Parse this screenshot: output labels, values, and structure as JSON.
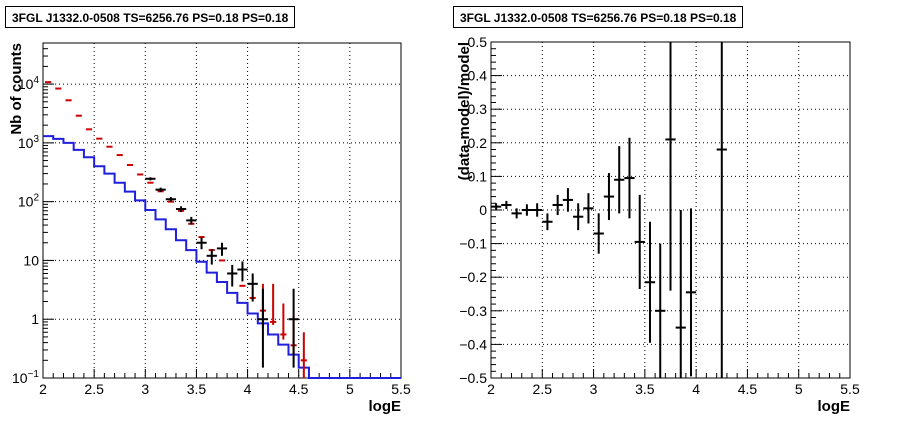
{
  "panels": [
    {
      "title": "3FGL J1332.0-0508 TS=6256.76 PS=0.18 PS=0.18"
    },
    {
      "title": "3FGL J1332.0-0508 TS=6256.76 PS=0.18 PS=0.18"
    }
  ],
  "chart_data": [
    {
      "type": "line",
      "title": "3FGL J1332.0-0508 TS=6256.76 PS=0.18 PS=0.18",
      "xlabel": "logE",
      "ylabel": "Nb of counts",
      "xlim": [
        2,
        5.5
      ],
      "ylim": [
        0.1,
        50000
      ],
      "yscale": "log",
      "grid": true,
      "x_ticks": [
        "2",
        "2.5",
        "3",
        "3.5",
        "4",
        "4.5",
        "5",
        "5.5"
      ],
      "y_ticks": [
        "10^{-1}",
        "1",
        "10",
        "10^{2}",
        "10^{3}",
        "10^{4}"
      ],
      "bin_edges": [
        2.0,
        2.1,
        2.2,
        2.3,
        2.4,
        2.5,
        2.6,
        2.7,
        2.8,
        2.9,
        3.0,
        3.1,
        3.2,
        3.3,
        3.4,
        3.5,
        3.6,
        3.7,
        3.8,
        3.9,
        4.0,
        4.1,
        4.2,
        4.3,
        4.4,
        4.5,
        4.6,
        4.7,
        4.8,
        4.9,
        5.0,
        5.1,
        5.2,
        5.3,
        5.4,
        5.5
      ],
      "series": [
        {
          "kind": "step",
          "color": "#1f1fdc",
          "values": [
            1300,
            1170,
            1000,
            760,
            570,
            400,
            300,
            210,
            148,
            105,
            72,
            50,
            34,
            22,
            15,
            9.5,
            6.2,
            4.3,
            2.8,
            1.9,
            1.25,
            0.85,
            0.55,
            0.37,
            0.25,
            0.15,
            0.1,
            0.1,
            0.1,
            0.1,
            0.1,
            0.1,
            0.1,
            0.1,
            0.1
          ]
        },
        {
          "kind": "markers",
          "color": "#cc0000",
          "values": [
            10800,
            8400,
            5300,
            2900,
            1700,
            1180,
            860,
            620,
            420,
            290,
            210,
            150,
            100,
            70,
            42,
            25,
            15,
            10,
            6,
            3.7,
            2.3,
            1.4,
            0.9,
            0.55,
            0.36,
            0.2
          ],
          "err_low": [
            0,
            0,
            0,
            0,
            0,
            0,
            0,
            0,
            0,
            0,
            0,
            0,
            0,
            0,
            0,
            0,
            0,
            0,
            0,
            0,
            0,
            0.7,
            0.1,
            0.1,
            0.1,
            0.1
          ],
          "err_high": [
            0,
            0,
            0,
            0,
            0,
            0,
            0,
            0,
            0,
            0,
            0,
            0,
            0,
            0,
            0,
            0,
            0,
            0,
            0,
            0,
            0,
            2.6,
            3.1,
            1.3,
            0.8,
            0.4
          ]
        },
        {
          "kind": "points",
          "color": "#000000",
          "x": [
            3.05,
            3.15,
            3.25,
            3.35,
            3.45,
            3.55,
            3.65,
            3.75,
            3.85,
            3.95,
            4.05,
            4.15,
            4.45
          ],
          "values": [
            245,
            160,
            110,
            75,
            48,
            20,
            12,
            16,
            6,
            7,
            4,
            1,
            1
          ],
          "err_low": [
            15,
            13,
            10,
            8.5,
            7,
            4.5,
            3.5,
            4,
            2.4,
            2.6,
            2,
            0.85,
            0.85
          ],
          "err_high": [
            15,
            13,
            10,
            8.5,
            7,
            4.5,
            3.5,
            4,
            2.4,
            2.6,
            2,
            2.3,
            2.3
          ]
        }
      ]
    },
    {
      "type": "scatter",
      "title": "3FGL J1332.0-0508 TS=6256.76 PS=0.18 PS=0.18",
      "xlabel": "logE",
      "ylabel": "(data-model)/model",
      "xlim": [
        2,
        5.5
      ],
      "ylim": [
        -0.5,
        0.5
      ],
      "grid": true,
      "x_ticks": [
        "2",
        "2.5",
        "3",
        "3.5",
        "4",
        "4.5",
        "5",
        "5.5"
      ],
      "y_ticks": [
        "-0.5",
        "-0.4",
        "-0.3",
        "-0.2",
        "-0.1",
        "0",
        "0.1",
        "0.2",
        "0.3",
        "0.4",
        "0.5"
      ],
      "series": [
        {
          "color": "#000000",
          "x": [
            2.05,
            2.15,
            2.25,
            2.35,
            2.45,
            2.55,
            2.65,
            2.75,
            2.85,
            2.95,
            3.05,
            3.15,
            3.25,
            3.35,
            3.45,
            3.55,
            3.65,
            3.75,
            3.85,
            3.95,
            4.25
          ],
          "y": [
            0.01,
            0.015,
            -0.01,
            0.0,
            0.0,
            -0.035,
            0.015,
            0.03,
            -0.02,
            0.005,
            -0.07,
            0.04,
            0.09,
            0.095,
            -0.095,
            -0.215,
            -0.3,
            0.21,
            -0.35,
            -0.245,
            0.18
          ],
          "err": [
            0.01,
            0.012,
            0.015,
            0.017,
            0.02,
            0.025,
            0.03,
            0.035,
            0.04,
            0.045,
            0.06,
            0.07,
            0.1,
            0.12,
            0.14,
            0.18,
            0.2,
            0.45,
            0.35,
            0.25,
            0.8
          ]
        }
      ]
    }
  ]
}
